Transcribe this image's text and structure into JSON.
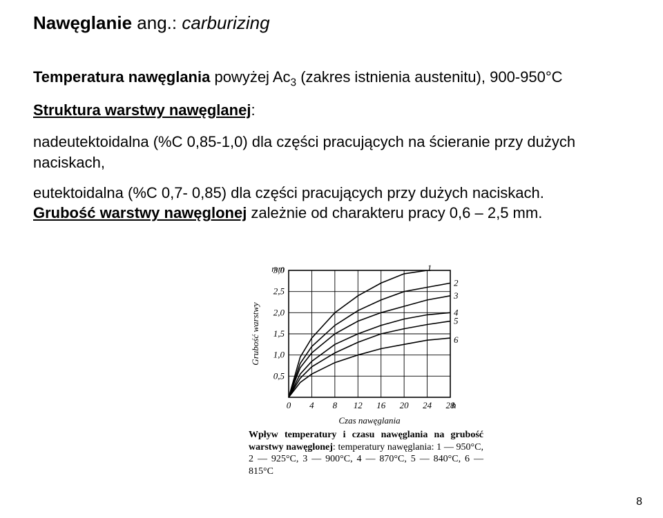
{
  "title": {
    "main": "Nawęglanie",
    "ang_label": "ang.:",
    "en_term": "carburizing"
  },
  "line1": {
    "label": "Temperatura nawęglania",
    "rest_a": " powyżej Ac",
    "sub": "3",
    "rest_b": " (zakres istnienia austenitu), 900-950°C"
  },
  "structure_label": "Struktura warstwy nawęglanej",
  "structure_colon": ":",
  "body1": "nadeutektoidalna (%C 0,85-1,0) dla części pracujących na ścieranie przy dużych naciskach,",
  "body2_a": "eutektoidalna (%C 0,7- 0,85) dla części pracujących przy dużych naciskach.",
  "grubosc": {
    "label": "Grubość warstwy nawęglonej",
    "rest": " zależnie od charakteru pracy 0,6 – 2,5 mm."
  },
  "chart": {
    "type": "line",
    "ylabel": "Grubość warstwy",
    "y_unit": "mm",
    "xlabel": "Czas nawęglania",
    "x_unit": "h",
    "xlim": [
      0,
      28
    ],
    "ylim": [
      0,
      3.0
    ],
    "xticks": [
      0,
      4,
      8,
      12,
      16,
      20,
      24,
      28
    ],
    "yticks": [
      0.5,
      1.0,
      1.5,
      2.0,
      2.5,
      3.0
    ],
    "xtick_labels": [
      "0",
      "4",
      "8",
      "12",
      "16",
      "20",
      "24",
      "28"
    ],
    "ytick_labels": [
      "0,5",
      "1,0",
      "1,5",
      "2,0",
      "2,5",
      "3,0"
    ],
    "x_end_label": "h",
    "series": [
      {
        "label": "1",
        "data": [
          [
            0,
            0
          ],
          [
            2,
            0.95
          ],
          [
            4,
            1.4
          ],
          [
            8,
            2.0
          ],
          [
            12,
            2.4
          ],
          [
            16,
            2.7
          ],
          [
            20,
            2.92
          ],
          [
            24,
            3.0
          ]
        ],
        "label_pos": [
          24,
          3.05
        ]
      },
      {
        "label": "2",
        "data": [
          [
            0,
            0
          ],
          [
            2,
            0.8
          ],
          [
            4,
            1.2
          ],
          [
            8,
            1.7
          ],
          [
            12,
            2.05
          ],
          [
            16,
            2.3
          ],
          [
            20,
            2.5
          ],
          [
            24,
            2.6
          ],
          [
            28,
            2.7
          ]
        ],
        "label_pos": [
          28.6,
          2.7
        ]
      },
      {
        "label": "3",
        "data": [
          [
            0,
            0
          ],
          [
            2,
            0.7
          ],
          [
            4,
            1.05
          ],
          [
            8,
            1.5
          ],
          [
            12,
            1.8
          ],
          [
            16,
            2.0
          ],
          [
            20,
            2.15
          ],
          [
            24,
            2.3
          ],
          [
            28,
            2.4
          ]
        ],
        "label_pos": [
          28.6,
          2.4
        ]
      },
      {
        "label": "4",
        "data": [
          [
            0,
            0
          ],
          [
            2,
            0.55
          ],
          [
            4,
            0.85
          ],
          [
            8,
            1.25
          ],
          [
            12,
            1.5
          ],
          [
            16,
            1.7
          ],
          [
            20,
            1.85
          ],
          [
            24,
            1.95
          ],
          [
            28,
            2.0
          ]
        ],
        "label_pos": [
          28.6,
          2.0
        ]
      },
      {
        "label": "5",
        "data": [
          [
            0,
            0
          ],
          [
            2,
            0.45
          ],
          [
            4,
            0.72
          ],
          [
            8,
            1.05
          ],
          [
            12,
            1.3
          ],
          [
            16,
            1.5
          ],
          [
            20,
            1.62
          ],
          [
            24,
            1.72
          ],
          [
            28,
            1.8
          ]
        ],
        "label_pos": [
          28.6,
          1.8
        ]
      },
      {
        "label": "6",
        "data": [
          [
            0,
            0
          ],
          [
            2,
            0.35
          ],
          [
            4,
            0.55
          ],
          [
            8,
            0.82
          ],
          [
            12,
            1.0
          ],
          [
            16,
            1.15
          ],
          [
            20,
            1.25
          ],
          [
            24,
            1.35
          ],
          [
            28,
            1.4
          ]
        ],
        "label_pos": [
          28.6,
          1.35
        ]
      }
    ],
    "line_color": "#000000",
    "line_width": 1.6,
    "grid_color": "#000000",
    "background_color": "#ffffff",
    "font_family": "Times New Roman",
    "axis_fontsize": 13,
    "label_fontsize": 13,
    "series_label_fontsize": 13
  },
  "caption": {
    "title": "Wpływ temperatury i czasu nawęglania na grubość warstwy nawęglonej",
    "after_title": ": temperatury nawęglania: ",
    "legend": "1 — 950°C, 2 — 925°C, 3 — 900°C, 4 — 870°C, 5 — 840°C, 6 — 815°C"
  },
  "page_number": "8"
}
